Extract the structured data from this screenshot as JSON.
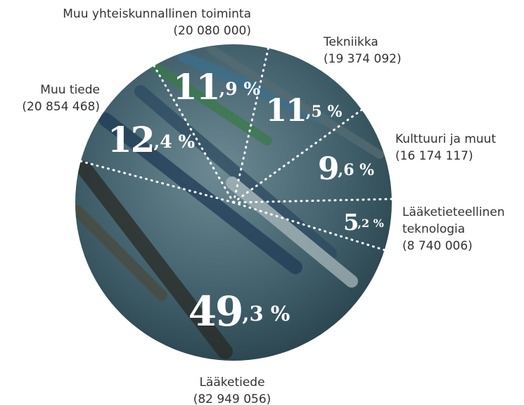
{
  "chart_data": {
    "type": "pie",
    "categories": [
      "Tekniikka",
      "Kulttuuri ja muut",
      "Lääketieteellinen teknologia",
      "Lääketiede",
      "Muu tiede",
      "Muu yhteiskunnallinen toiminta"
    ],
    "values": [
      11.5,
      9.6,
      5.2,
      49.3,
      12.4,
      11.9
    ],
    "value_labels": [
      [
        "11",
        ",5 %"
      ],
      [
        "9",
        ",6 %"
      ],
      [
        "5",
        ",2 %"
      ],
      [
        "49",
        ",3 %"
      ],
      [
        "12",
        ",4 %"
      ],
      [
        "11",
        ",9 %"
      ]
    ],
    "amounts": [
      19374092,
      16174117,
      8740006,
      82949056,
      20854468,
      20080000
    ],
    "amount_labels": [
      "(19 374 092)",
      "(16 174 117)",
      "(8 740 006)",
      "(82 949 056)",
      "(20 854 468)",
      "(20 080 000)"
    ]
  }
}
